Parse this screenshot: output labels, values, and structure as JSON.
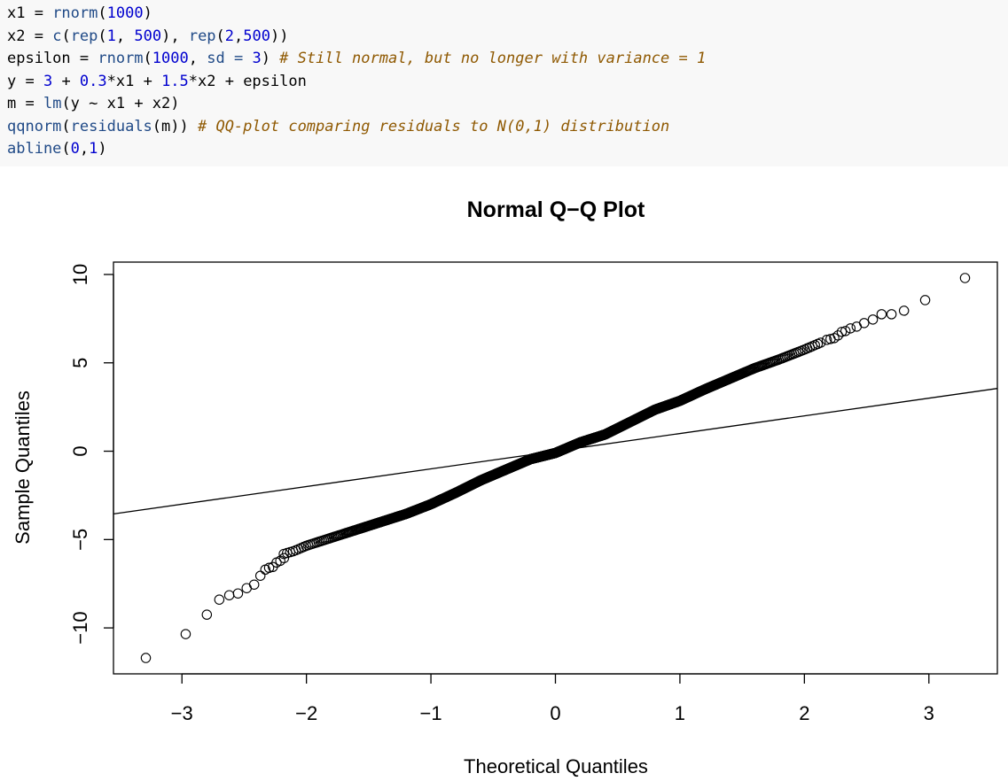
{
  "code": [
    [
      {
        "t": "x1 = ",
        "c": ""
      },
      {
        "t": "rnorm",
        "c": "fn"
      },
      {
        "t": "(",
        "c": ""
      },
      {
        "t": "1000",
        "c": "num"
      },
      {
        "t": ")",
        "c": ""
      }
    ],
    [
      {
        "t": "x2 = ",
        "c": ""
      },
      {
        "t": "c",
        "c": "fn"
      },
      {
        "t": "(",
        "c": ""
      },
      {
        "t": "rep",
        "c": "fn"
      },
      {
        "t": "(",
        "c": ""
      },
      {
        "t": "1",
        "c": "num"
      },
      {
        "t": ", ",
        "c": ""
      },
      {
        "t": "500",
        "c": "num"
      },
      {
        "t": "), ",
        "c": ""
      },
      {
        "t": "rep",
        "c": "fn"
      },
      {
        "t": "(",
        "c": ""
      },
      {
        "t": "2",
        "c": "num"
      },
      {
        "t": ",",
        "c": ""
      },
      {
        "t": "500",
        "c": "num"
      },
      {
        "t": "))",
        "c": ""
      }
    ],
    [
      {
        "t": "epsilon = ",
        "c": ""
      },
      {
        "t": "rnorm",
        "c": "fn"
      },
      {
        "t": "(",
        "c": ""
      },
      {
        "t": "1000",
        "c": "num"
      },
      {
        "t": ", ",
        "c": ""
      },
      {
        "t": "sd =",
        "c": "fn"
      },
      {
        "t": " ",
        "c": ""
      },
      {
        "t": "3",
        "c": "num"
      },
      {
        "t": ") ",
        "c": ""
      },
      {
        "t": "# Still normal, but no longer with variance = 1",
        "c": "cm"
      }
    ],
    [
      {
        "t": "y = ",
        "c": ""
      },
      {
        "t": "3",
        "c": "num"
      },
      {
        "t": " + ",
        "c": ""
      },
      {
        "t": "0.3",
        "c": "num"
      },
      {
        "t": "*x1 + ",
        "c": ""
      },
      {
        "t": "1.5",
        "c": "num"
      },
      {
        "t": "*x2 + epsilon",
        "c": ""
      }
    ],
    [
      {
        "t": "m = ",
        "c": ""
      },
      {
        "t": "lm",
        "c": "fn"
      },
      {
        "t": "(y ~ x1 + x2)",
        "c": ""
      }
    ],
    [
      {
        "t": "qqnorm",
        "c": "fn"
      },
      {
        "t": "(",
        "c": ""
      },
      {
        "t": "residuals",
        "c": "fn"
      },
      {
        "t": "(m)) ",
        "c": ""
      },
      {
        "t": "# QQ-plot comparing residuals to N(0,1) distribution",
        "c": "cm"
      }
    ],
    [
      {
        "t": "abline",
        "c": "fn"
      },
      {
        "t": "(",
        "c": ""
      },
      {
        "t": "0",
        "c": "num"
      },
      {
        "t": ",",
        "c": ""
      },
      {
        "t": "1",
        "c": "num"
      },
      {
        "t": ")",
        "c": ""
      }
    ]
  ],
  "colors": {
    "code_background": "#f8f8f8",
    "function": "#204a87",
    "number": "#0000cf",
    "comment": "#8f5902",
    "plot_ink": "#000000"
  },
  "chart_data": {
    "type": "scatter",
    "title": "Normal Q−Q Plot",
    "xlabel": "Theoretical Quantiles",
    "ylabel": "Sample Quantiles",
    "xlim": [
      -3.55,
      3.55
    ],
    "ylim": [
      -12.6,
      10.7
    ],
    "xticks": [
      -3,
      -2,
      -1,
      0,
      1,
      2,
      3
    ],
    "xtick_labels": [
      "−3",
      "−2",
      "−1",
      "0",
      "1",
      "2",
      "3"
    ],
    "yticks": [
      -10,
      -5,
      0,
      5,
      10
    ],
    "ytick_labels": [
      "−10",
      "−5",
      "0",
      "5",
      "10"
    ],
    "n_points": 1000,
    "reference_line": {
      "intercept": 0,
      "slope": 1
    },
    "quantile_curve": [
      [
        -2.2,
        -5.85
      ],
      [
        -2.1,
        -5.65
      ],
      [
        -2.0,
        -5.35
      ],
      [
        -1.8,
        -4.9
      ],
      [
        -1.6,
        -4.45
      ],
      [
        -1.4,
        -4.0
      ],
      [
        -1.2,
        -3.55
      ],
      [
        -1.0,
        -3.0
      ],
      [
        -0.8,
        -2.35
      ],
      [
        -0.6,
        -1.65
      ],
      [
        -0.4,
        -1.05
      ],
      [
        -0.2,
        -0.45
      ],
      [
        0.0,
        -0.1
      ],
      [
        0.2,
        0.5
      ],
      [
        0.4,
        0.95
      ],
      [
        0.6,
        1.65
      ],
      [
        0.8,
        2.35
      ],
      [
        1.0,
        2.85
      ],
      [
        1.2,
        3.5
      ],
      [
        1.4,
        4.1
      ],
      [
        1.6,
        4.7
      ],
      [
        1.8,
        5.2
      ],
      [
        2.0,
        5.75
      ],
      [
        2.15,
        6.2
      ]
    ],
    "tail_points": [
      [
        -3.29,
        -11.7
      ],
      [
        -2.97,
        -10.35
      ],
      [
        -2.8,
        -9.25
      ],
      [
        -2.7,
        -8.4
      ],
      [
        -2.62,
        -8.15
      ],
      [
        -2.55,
        -8.05
      ],
      [
        -2.48,
        -7.75
      ],
      [
        -2.42,
        -7.55
      ],
      [
        -2.37,
        -7.05
      ],
      [
        -2.33,
        -6.7
      ],
      [
        -2.3,
        -6.6
      ],
      [
        -2.27,
        -6.55
      ],
      [
        -2.24,
        -6.3
      ],
      [
        -2.21,
        -6.2
      ],
      [
        -2.18,
        -6.05
      ],
      [
        2.18,
        6.3
      ],
      [
        2.21,
        6.35
      ],
      [
        2.24,
        6.4
      ],
      [
        2.27,
        6.55
      ],
      [
        2.3,
        6.75
      ],
      [
        2.33,
        6.8
      ],
      [
        2.37,
        6.95
      ],
      [
        2.42,
        7.05
      ],
      [
        2.48,
        7.25
      ],
      [
        2.55,
        7.45
      ],
      [
        2.62,
        7.75
      ],
      [
        2.7,
        7.75
      ],
      [
        2.8,
        7.95
      ],
      [
        2.97,
        8.55
      ],
      [
        3.29,
        9.8
      ]
    ]
  }
}
